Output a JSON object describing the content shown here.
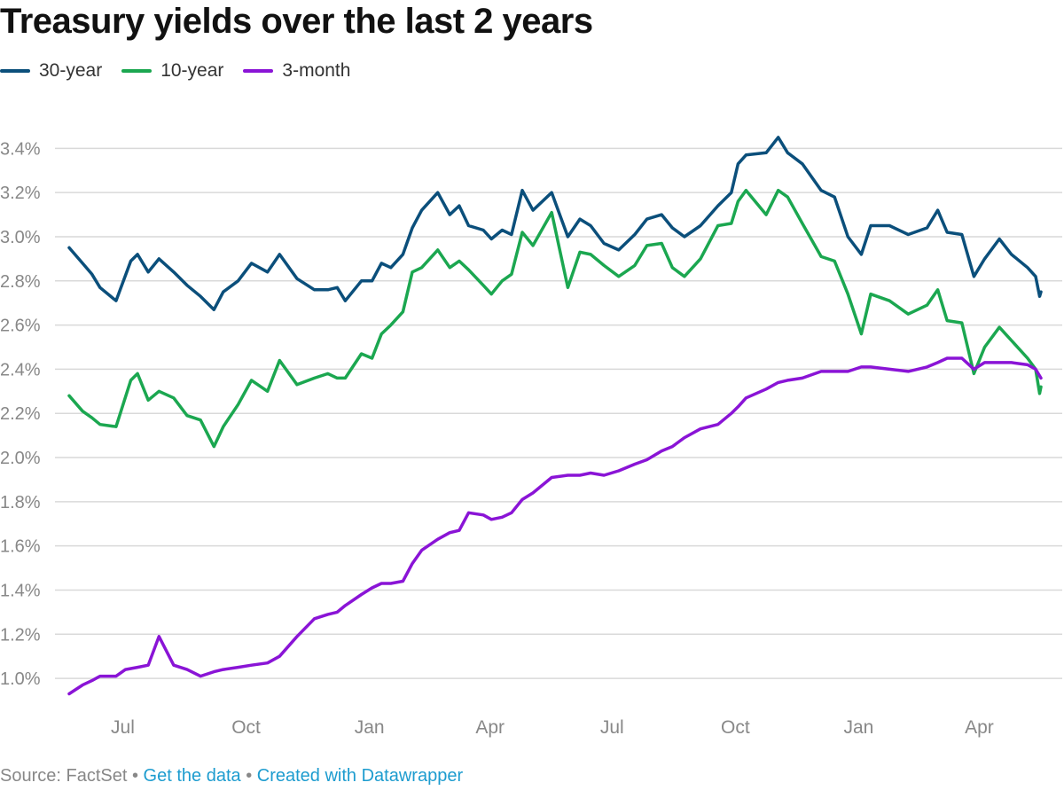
{
  "title": "Treasury yields over the last 2 years",
  "footer": {
    "source": "Source: FactSet",
    "separator": "•",
    "get_data": "Get the data",
    "created": "Created with Datawrapper"
  },
  "colors": {
    "thirty_year": "#0b4f7b",
    "ten_year": "#1ba750",
    "three_month": "#8a14d6",
    "grid": "#d9d9d9",
    "tick_label": "#888888"
  },
  "chart_data": {
    "type": "line",
    "title": "Treasury yields over the last 2 years",
    "xlabel": "",
    "ylabel": "",
    "x_range": [
      "2017-05-22",
      "2019-05-17"
    ],
    "ylim": [
      0.9,
      3.55
    ],
    "y_ticks": [
      1.0,
      1.2,
      1.4,
      1.6,
      1.8,
      2.0,
      2.2,
      2.4,
      2.6,
      2.8,
      3.0,
      3.2,
      3.4
    ],
    "y_tick_labels": [
      "1.0%",
      "1.2%",
      "1.4%",
      "1.6%",
      "1.8%",
      "2.0%",
      "2.2%",
      "2.4%",
      "2.6%",
      "2.8%",
      "3.0%",
      "3.2%",
      "3.4%"
    ],
    "x_ticks": [
      "2017-07-01",
      "2017-10-01",
      "2018-01-01",
      "2018-04-01",
      "2018-07-01",
      "2018-10-01",
      "2019-01-01",
      "2019-04-01"
    ],
    "x_tick_labels": [
      "Jul",
      "Oct",
      "Jan",
      "Apr",
      "Jul",
      "Oct",
      "Jan",
      "Apr"
    ],
    "grid": true,
    "legend_position": "top-left",
    "series": [
      {
        "name": "30-year",
        "color": "#0b4f7b",
        "points": [
          [
            "2017-05-22",
            2.95
          ],
          [
            "2017-06-01",
            2.88
          ],
          [
            "2017-06-08",
            2.83
          ],
          [
            "2017-06-14",
            2.77
          ],
          [
            "2017-06-26",
            2.71
          ],
          [
            "2017-07-07",
            2.89
          ],
          [
            "2017-07-12",
            2.92
          ],
          [
            "2017-07-20",
            2.84
          ],
          [
            "2017-07-28",
            2.9
          ],
          [
            "2017-08-08",
            2.84
          ],
          [
            "2017-08-18",
            2.78
          ],
          [
            "2017-08-28",
            2.73
          ],
          [
            "2017-09-07",
            2.67
          ],
          [
            "2017-09-14",
            2.75
          ],
          [
            "2017-09-25",
            2.8
          ],
          [
            "2017-10-05",
            2.88
          ],
          [
            "2017-10-17",
            2.84
          ],
          [
            "2017-10-26",
            2.92
          ],
          [
            "2017-11-08",
            2.81
          ],
          [
            "2017-11-21",
            2.76
          ],
          [
            "2017-12-01",
            2.76
          ],
          [
            "2017-12-08",
            2.77
          ],
          [
            "2017-12-14",
            2.71
          ],
          [
            "2017-12-26",
            2.8
          ],
          [
            "2018-01-03",
            2.8
          ],
          [
            "2018-01-10",
            2.88
          ],
          [
            "2018-01-17",
            2.86
          ],
          [
            "2018-01-26",
            2.92
          ],
          [
            "2018-02-02",
            3.04
          ],
          [
            "2018-02-09",
            3.12
          ],
          [
            "2018-02-21",
            3.2
          ],
          [
            "2018-03-02",
            3.1
          ],
          [
            "2018-03-09",
            3.14
          ],
          [
            "2018-03-16",
            3.05
          ],
          [
            "2018-03-27",
            3.03
          ],
          [
            "2018-04-02",
            2.99
          ],
          [
            "2018-04-10",
            3.03
          ],
          [
            "2018-04-17",
            3.01
          ],
          [
            "2018-04-25",
            3.21
          ],
          [
            "2018-05-03",
            3.12
          ],
          [
            "2018-05-17",
            3.2
          ],
          [
            "2018-05-29",
            3.0
          ],
          [
            "2018-06-07",
            3.08
          ],
          [
            "2018-06-15",
            3.05
          ],
          [
            "2018-06-25",
            2.97
          ],
          [
            "2018-07-06",
            2.94
          ],
          [
            "2018-07-18",
            3.01
          ],
          [
            "2018-07-27",
            3.08
          ],
          [
            "2018-08-07",
            3.1
          ],
          [
            "2018-08-15",
            3.04
          ],
          [
            "2018-08-24",
            3.0
          ],
          [
            "2018-09-05",
            3.05
          ],
          [
            "2018-09-18",
            3.14
          ],
          [
            "2018-09-28",
            3.2
          ],
          [
            "2018-10-03",
            3.33
          ],
          [
            "2018-10-09",
            3.37
          ],
          [
            "2018-10-24",
            3.38
          ],
          [
            "2018-11-02",
            3.45
          ],
          [
            "2018-11-09",
            3.38
          ],
          [
            "2018-11-20",
            3.33
          ],
          [
            "2018-12-04",
            3.21
          ],
          [
            "2018-12-14",
            3.18
          ],
          [
            "2018-12-24",
            3.0
          ],
          [
            "2019-01-03",
            2.92
          ],
          [
            "2019-01-10",
            3.05
          ],
          [
            "2019-01-24",
            3.05
          ],
          [
            "2019-02-07",
            3.01
          ],
          [
            "2019-02-21",
            3.04
          ],
          [
            "2019-03-01",
            3.12
          ],
          [
            "2019-03-08",
            3.02
          ],
          [
            "2019-03-19",
            3.01
          ],
          [
            "2019-03-28",
            2.82
          ],
          [
            "2019-04-05",
            2.9
          ],
          [
            "2019-04-16",
            2.99
          ],
          [
            "2019-04-25",
            2.92
          ],
          [
            "2019-05-07",
            2.86
          ],
          [
            "2019-05-13",
            2.82
          ],
          [
            "2019-05-16",
            2.73
          ],
          [
            "2019-05-17",
            2.75
          ]
        ]
      },
      {
        "name": "10-year",
        "color": "#1ba750",
        "points": [
          [
            "2017-05-22",
            2.28
          ],
          [
            "2017-06-01",
            2.21
          ],
          [
            "2017-06-08",
            2.18
          ],
          [
            "2017-06-14",
            2.15
          ],
          [
            "2017-06-26",
            2.14
          ],
          [
            "2017-07-07",
            2.35
          ],
          [
            "2017-07-12",
            2.38
          ],
          [
            "2017-07-20",
            2.26
          ],
          [
            "2017-07-28",
            2.3
          ],
          [
            "2017-08-08",
            2.27
          ],
          [
            "2017-08-18",
            2.19
          ],
          [
            "2017-08-28",
            2.17
          ],
          [
            "2017-09-07",
            2.05
          ],
          [
            "2017-09-14",
            2.14
          ],
          [
            "2017-09-25",
            2.24
          ],
          [
            "2017-10-05",
            2.35
          ],
          [
            "2017-10-17",
            2.3
          ],
          [
            "2017-10-26",
            2.44
          ],
          [
            "2017-11-08",
            2.33
          ],
          [
            "2017-11-21",
            2.36
          ],
          [
            "2017-12-01",
            2.38
          ],
          [
            "2017-12-08",
            2.36
          ],
          [
            "2017-12-14",
            2.36
          ],
          [
            "2017-12-26",
            2.47
          ],
          [
            "2018-01-03",
            2.45
          ],
          [
            "2018-01-10",
            2.56
          ],
          [
            "2018-01-17",
            2.6
          ],
          [
            "2018-01-26",
            2.66
          ],
          [
            "2018-02-02",
            2.84
          ],
          [
            "2018-02-09",
            2.86
          ],
          [
            "2018-02-21",
            2.94
          ],
          [
            "2018-03-02",
            2.86
          ],
          [
            "2018-03-09",
            2.89
          ],
          [
            "2018-03-16",
            2.85
          ],
          [
            "2018-03-27",
            2.78
          ],
          [
            "2018-04-02",
            2.74
          ],
          [
            "2018-04-10",
            2.8
          ],
          [
            "2018-04-17",
            2.83
          ],
          [
            "2018-04-25",
            3.02
          ],
          [
            "2018-05-03",
            2.96
          ],
          [
            "2018-05-17",
            3.11
          ],
          [
            "2018-05-29",
            2.77
          ],
          [
            "2018-06-07",
            2.93
          ],
          [
            "2018-06-15",
            2.92
          ],
          [
            "2018-06-25",
            2.87
          ],
          [
            "2018-07-06",
            2.82
          ],
          [
            "2018-07-18",
            2.87
          ],
          [
            "2018-07-27",
            2.96
          ],
          [
            "2018-08-07",
            2.97
          ],
          [
            "2018-08-15",
            2.86
          ],
          [
            "2018-08-24",
            2.82
          ],
          [
            "2018-09-05",
            2.9
          ],
          [
            "2018-09-18",
            3.05
          ],
          [
            "2018-09-28",
            3.06
          ],
          [
            "2018-10-03",
            3.16
          ],
          [
            "2018-10-09",
            3.21
          ],
          [
            "2018-10-24",
            3.1
          ],
          [
            "2018-11-02",
            3.21
          ],
          [
            "2018-11-09",
            3.18
          ],
          [
            "2018-11-20",
            3.06
          ],
          [
            "2018-12-04",
            2.91
          ],
          [
            "2018-12-14",
            2.89
          ],
          [
            "2018-12-24",
            2.74
          ],
          [
            "2019-01-03",
            2.56
          ],
          [
            "2019-01-10",
            2.74
          ],
          [
            "2019-01-24",
            2.71
          ],
          [
            "2019-02-07",
            2.65
          ],
          [
            "2019-02-21",
            2.69
          ],
          [
            "2019-03-01",
            2.76
          ],
          [
            "2019-03-08",
            2.62
          ],
          [
            "2019-03-19",
            2.61
          ],
          [
            "2019-03-28",
            2.38
          ],
          [
            "2019-04-05",
            2.5
          ],
          [
            "2019-04-16",
            2.59
          ],
          [
            "2019-04-25",
            2.53
          ],
          [
            "2019-05-07",
            2.45
          ],
          [
            "2019-05-13",
            2.4
          ],
          [
            "2019-05-16",
            2.29
          ],
          [
            "2019-05-17",
            2.32
          ]
        ]
      },
      {
        "name": "3-month",
        "color": "#8a14d6",
        "points": [
          [
            "2017-05-22",
            0.93
          ],
          [
            "2017-06-01",
            0.97
          ],
          [
            "2017-06-08",
            0.99
          ],
          [
            "2017-06-14",
            1.01
          ],
          [
            "2017-06-26",
            1.01
          ],
          [
            "2017-07-03",
            1.04
          ],
          [
            "2017-07-12",
            1.05
          ],
          [
            "2017-07-20",
            1.06
          ],
          [
            "2017-07-28",
            1.19
          ],
          [
            "2017-08-08",
            1.06
          ],
          [
            "2017-08-18",
            1.04
          ],
          [
            "2017-08-28",
            1.01
          ],
          [
            "2017-09-07",
            1.03
          ],
          [
            "2017-09-14",
            1.04
          ],
          [
            "2017-09-25",
            1.05
          ],
          [
            "2017-10-05",
            1.06
          ],
          [
            "2017-10-17",
            1.07
          ],
          [
            "2017-10-26",
            1.1
          ],
          [
            "2017-11-08",
            1.19
          ],
          [
            "2017-11-21",
            1.27
          ],
          [
            "2017-12-01",
            1.29
          ],
          [
            "2017-12-08",
            1.3
          ],
          [
            "2017-12-14",
            1.33
          ],
          [
            "2017-12-26",
            1.38
          ],
          [
            "2018-01-03",
            1.41
          ],
          [
            "2018-01-10",
            1.43
          ],
          [
            "2018-01-17",
            1.43
          ],
          [
            "2018-01-26",
            1.44
          ],
          [
            "2018-02-02",
            1.52
          ],
          [
            "2018-02-09",
            1.58
          ],
          [
            "2018-02-21",
            1.63
          ],
          [
            "2018-03-02",
            1.66
          ],
          [
            "2018-03-09",
            1.67
          ],
          [
            "2018-03-16",
            1.75
          ],
          [
            "2018-03-27",
            1.74
          ],
          [
            "2018-04-02",
            1.72
          ],
          [
            "2018-04-10",
            1.73
          ],
          [
            "2018-04-17",
            1.75
          ],
          [
            "2018-04-25",
            1.81
          ],
          [
            "2018-05-03",
            1.84
          ],
          [
            "2018-05-17",
            1.91
          ],
          [
            "2018-05-29",
            1.92
          ],
          [
            "2018-06-07",
            1.92
          ],
          [
            "2018-06-15",
            1.93
          ],
          [
            "2018-06-25",
            1.92
          ],
          [
            "2018-07-06",
            1.94
          ],
          [
            "2018-07-18",
            1.97
          ],
          [
            "2018-07-27",
            1.99
          ],
          [
            "2018-08-07",
            2.03
          ],
          [
            "2018-08-15",
            2.05
          ],
          [
            "2018-08-24",
            2.09
          ],
          [
            "2018-09-05",
            2.13
          ],
          [
            "2018-09-18",
            2.15
          ],
          [
            "2018-09-28",
            2.2
          ],
          [
            "2018-10-03",
            2.23
          ],
          [
            "2018-10-09",
            2.27
          ],
          [
            "2018-10-24",
            2.31
          ],
          [
            "2018-11-02",
            2.34
          ],
          [
            "2018-11-09",
            2.35
          ],
          [
            "2018-11-20",
            2.36
          ],
          [
            "2018-12-04",
            2.39
          ],
          [
            "2018-12-14",
            2.39
          ],
          [
            "2018-12-24",
            2.39
          ],
          [
            "2019-01-03",
            2.41
          ],
          [
            "2019-01-10",
            2.41
          ],
          [
            "2019-01-24",
            2.4
          ],
          [
            "2019-02-07",
            2.39
          ],
          [
            "2019-02-21",
            2.41
          ],
          [
            "2019-03-01",
            2.43
          ],
          [
            "2019-03-08",
            2.45
          ],
          [
            "2019-03-19",
            2.45
          ],
          [
            "2019-03-28",
            2.4
          ],
          [
            "2019-04-05",
            2.43
          ],
          [
            "2019-04-16",
            2.43
          ],
          [
            "2019-04-25",
            2.43
          ],
          [
            "2019-05-07",
            2.42
          ],
          [
            "2019-05-13",
            2.4
          ],
          [
            "2019-05-16",
            2.37
          ],
          [
            "2019-05-17",
            2.36
          ]
        ]
      }
    ]
  }
}
